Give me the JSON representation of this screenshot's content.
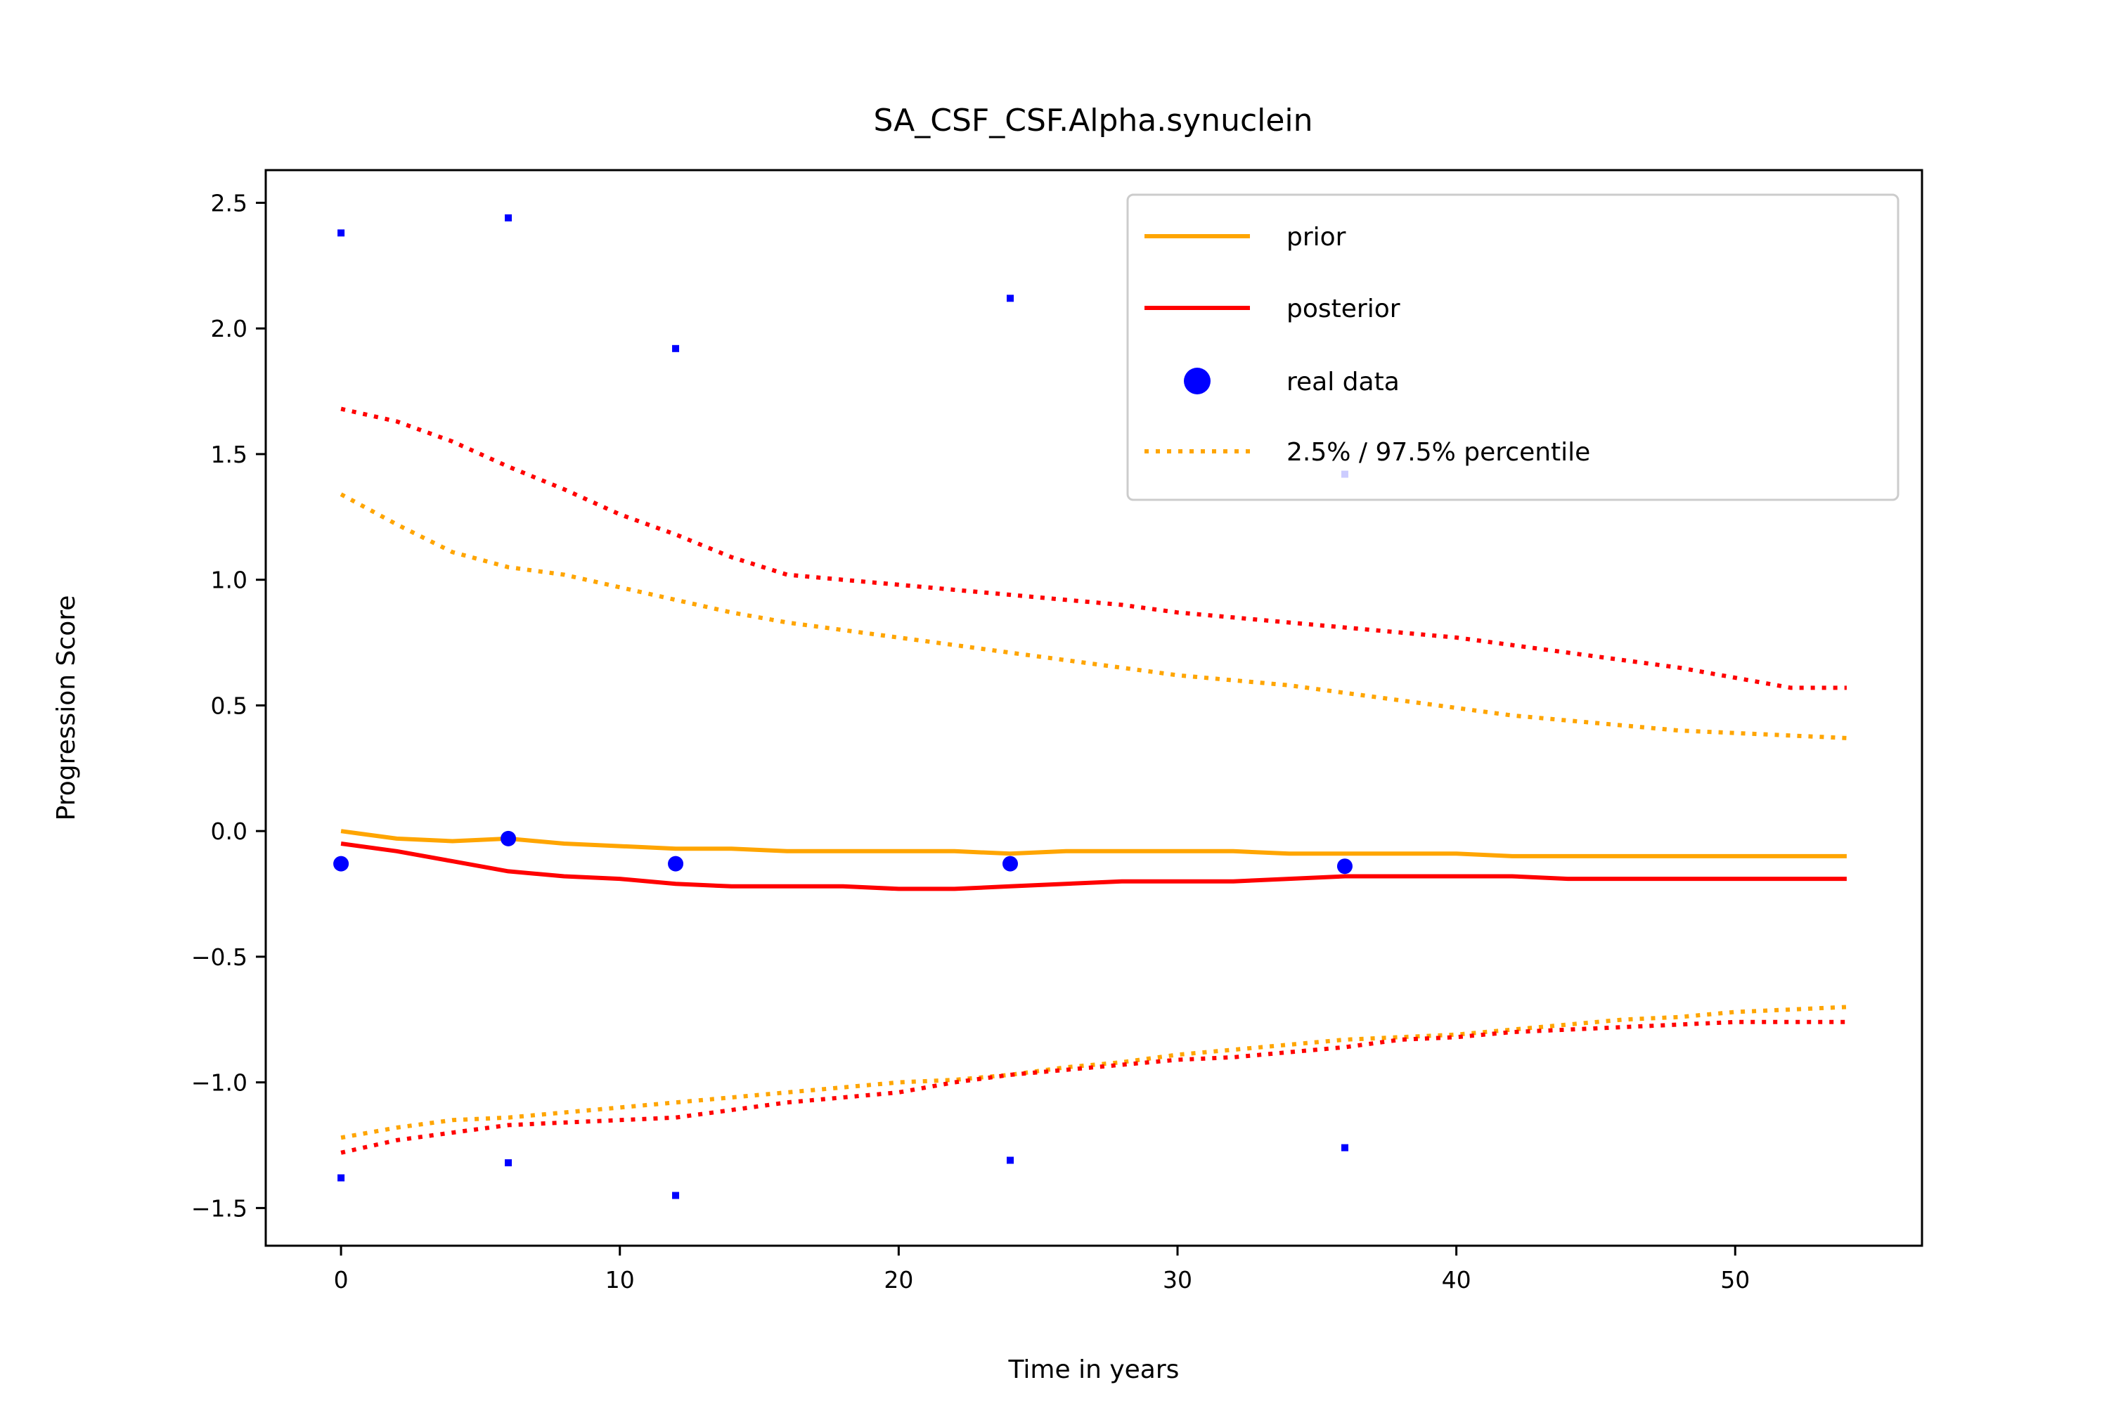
{
  "chart_data": {
    "type": "line",
    "title": "SA_CSF_CSF.Alpha.synuclein",
    "xlabel": "Time in years",
    "ylabel": "Progression Score",
    "xlim": [
      -2.7,
      56.7
    ],
    "ylim": [
      -1.65,
      2.63
    ],
    "xticks": [
      0,
      10,
      20,
      30,
      40,
      50
    ],
    "xtick_labels": [
      "0",
      "10",
      "20",
      "30",
      "40",
      "50"
    ],
    "yticks": [
      -1.5,
      -1.0,
      -0.5,
      0.0,
      0.5,
      1.0,
      1.5,
      2.0,
      2.5
    ],
    "ytick_labels": [
      "−1.5",
      "−1.0",
      "−0.5",
      "0.0",
      "0.5",
      "1.0",
      "1.5",
      "2.0",
      "2.5"
    ],
    "grid": false,
    "legend_position": "top-right",
    "legend": [
      {
        "label": "prior",
        "style": "solid-line",
        "color": "#ffa500"
      },
      {
        "label": "posterior",
        "style": "solid-line",
        "color": "#ff0000"
      },
      {
        "label": "real data",
        "style": "marker",
        "color": "#0000ff"
      },
      {
        "label": "2.5% / 97.5% percentile",
        "style": "dotted-line",
        "color": "#ffa500"
      }
    ],
    "series": [
      {
        "name": "prior",
        "style": "solid",
        "color": "#ffa500",
        "x": [
          0,
          2,
          4,
          6,
          8,
          10,
          12,
          14,
          16,
          18,
          20,
          22,
          24,
          26,
          28,
          30,
          32,
          34,
          36,
          38,
          40,
          42,
          44,
          46,
          48,
          50,
          52,
          54
        ],
        "y": [
          0.0,
          -0.03,
          -0.04,
          -0.03,
          -0.05,
          -0.06,
          -0.07,
          -0.07,
          -0.08,
          -0.08,
          -0.08,
          -0.08,
          -0.09,
          -0.08,
          -0.08,
          -0.08,
          -0.08,
          -0.09,
          -0.09,
          -0.09,
          -0.09,
          -0.1,
          -0.1,
          -0.1,
          -0.1,
          -0.1,
          -0.1,
          -0.1
        ]
      },
      {
        "name": "posterior",
        "style": "solid",
        "color": "#ff0000",
        "x": [
          0,
          2,
          4,
          6,
          8,
          10,
          12,
          14,
          16,
          18,
          20,
          22,
          24,
          26,
          28,
          30,
          32,
          34,
          36,
          38,
          40,
          42,
          44,
          46,
          48,
          50,
          52,
          54
        ],
        "y": [
          -0.05,
          -0.08,
          -0.12,
          -0.16,
          -0.18,
          -0.19,
          -0.21,
          -0.22,
          -0.22,
          -0.22,
          -0.23,
          -0.23,
          -0.22,
          -0.21,
          -0.2,
          -0.2,
          -0.2,
          -0.19,
          -0.18,
          -0.18,
          -0.18,
          -0.18,
          -0.19,
          -0.19,
          -0.19,
          -0.19,
          -0.19,
          -0.19
        ]
      },
      {
        "name": "prior 97.5%",
        "style": "dotted",
        "color": "#ffa500",
        "x": [
          0,
          2,
          4,
          6,
          8,
          10,
          12,
          14,
          16,
          18,
          20,
          22,
          24,
          26,
          28,
          30,
          32,
          34,
          36,
          38,
          40,
          42,
          44,
          46,
          48,
          50,
          52,
          54
        ],
        "y": [
          1.34,
          1.22,
          1.11,
          1.05,
          1.02,
          0.97,
          0.92,
          0.87,
          0.83,
          0.8,
          0.77,
          0.74,
          0.71,
          0.68,
          0.65,
          0.62,
          0.6,
          0.58,
          0.55,
          0.52,
          0.49,
          0.46,
          0.44,
          0.42,
          0.4,
          0.39,
          0.38,
          0.37
        ]
      },
      {
        "name": "prior 2.5%",
        "style": "dotted",
        "color": "#ffa500",
        "x": [
          0,
          2,
          4,
          6,
          8,
          10,
          12,
          14,
          16,
          18,
          20,
          22,
          24,
          26,
          28,
          30,
          32,
          34,
          36,
          38,
          40,
          42,
          44,
          46,
          48,
          50,
          52,
          54
        ],
        "y": [
          -1.22,
          -1.18,
          -1.15,
          -1.14,
          -1.12,
          -1.1,
          -1.08,
          -1.06,
          -1.04,
          -1.02,
          -1.0,
          -0.99,
          -0.97,
          -0.94,
          -0.92,
          -0.89,
          -0.87,
          -0.85,
          -0.83,
          -0.82,
          -0.81,
          -0.79,
          -0.77,
          -0.75,
          -0.74,
          -0.72,
          -0.71,
          -0.7
        ]
      },
      {
        "name": "posterior 97.5%",
        "style": "dotted",
        "color": "#ff0000",
        "x": [
          0,
          2,
          4,
          6,
          8,
          10,
          12,
          14,
          16,
          18,
          20,
          22,
          24,
          26,
          28,
          30,
          32,
          34,
          36,
          38,
          40,
          42,
          44,
          46,
          48,
          50,
          52,
          54
        ],
        "y": [
          1.68,
          1.63,
          1.55,
          1.45,
          1.36,
          1.26,
          1.18,
          1.09,
          1.02,
          1.0,
          0.98,
          0.96,
          0.94,
          0.92,
          0.9,
          0.87,
          0.85,
          0.83,
          0.81,
          0.79,
          0.77,
          0.74,
          0.71,
          0.68,
          0.65,
          0.61,
          0.57,
          0.57
        ]
      },
      {
        "name": "posterior 2.5%",
        "style": "dotted",
        "color": "#ff0000",
        "x": [
          0,
          2,
          4,
          6,
          8,
          10,
          12,
          14,
          16,
          18,
          20,
          22,
          24,
          26,
          28,
          30,
          32,
          34,
          36,
          38,
          40,
          42,
          44,
          46,
          48,
          50,
          52,
          54
        ],
        "y": [
          -1.28,
          -1.23,
          -1.2,
          -1.17,
          -1.16,
          -1.15,
          -1.14,
          -1.11,
          -1.08,
          -1.06,
          -1.04,
          -1.0,
          -0.97,
          -0.95,
          -0.93,
          -0.91,
          -0.9,
          -0.88,
          -0.86,
          -0.83,
          -0.82,
          -0.8,
          -0.79,
          -0.78,
          -0.77,
          -0.76,
          -0.76,
          -0.76
        ]
      }
    ],
    "real_data": {
      "name": "real data",
      "color": "#0000ff",
      "mean_points": [
        {
          "x": 0,
          "y": -0.13
        },
        {
          "x": 6,
          "y": -0.03
        },
        {
          "x": 12,
          "y": -0.13
        },
        {
          "x": 24,
          "y": -0.13
        },
        {
          "x": 36,
          "y": -0.14
        }
      ],
      "extreme_points": [
        {
          "x": 0,
          "y": 2.38
        },
        {
          "x": 6,
          "y": 2.44
        },
        {
          "x": 12,
          "y": 1.92
        },
        {
          "x": 24,
          "y": 2.12
        },
        {
          "x": 36,
          "y": 1.42
        },
        {
          "x": 0,
          "y": -1.38
        },
        {
          "x": 6,
          "y": -1.32
        },
        {
          "x": 12,
          "y": -1.45
        },
        {
          "x": 24,
          "y": -1.31
        },
        {
          "x": 36,
          "y": -1.26
        }
      ]
    }
  }
}
